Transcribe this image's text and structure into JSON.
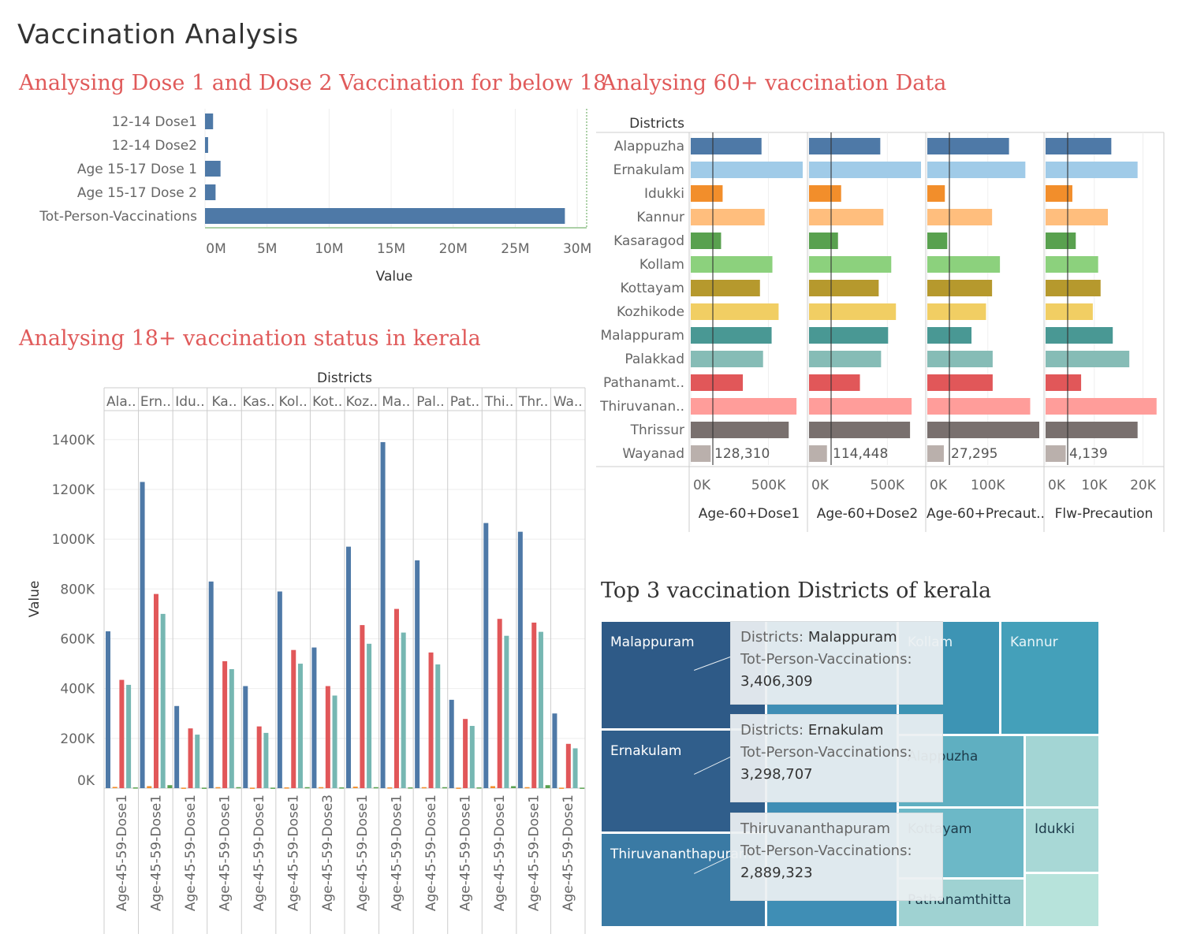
{
  "dashboard": {
    "title": "Vaccination Analysis"
  },
  "below18": {
    "title": "Analysing Dose 1 and Dose 2 Vaccination for below 18",
    "chart_data": {
      "type": "bar",
      "orientation": "horizontal",
      "categories": [
        "12-14 Dose1",
        "12-14 Dose2",
        "Age 15-17 Dose 1",
        "Age 15-17 Dose  2",
        "Tot-Person-Vaccinations"
      ],
      "values": [
        650000,
        250000,
        1250000,
        850000,
        29000000
      ],
      "xlabel": "Value",
      "xlim": [
        0,
        30500000
      ],
      "xticks": [
        0,
        5000000,
        10000000,
        15000000,
        20000000,
        25000000,
        30000000
      ],
      "xtick_labels": [
        "0M",
        "5M",
        "10M",
        "15M",
        "20M",
        "25M",
        "30M"
      ],
      "color": "#4e79a7"
    }
  },
  "adult": {
    "title": "Analysing 18+ vaccination status in kerala",
    "chart_data": {
      "type": "bar",
      "header_label": "Districts",
      "ylabel": "Value",
      "ylim": [
        0,
        1450000
      ],
      "yticks": [
        0,
        200000,
        400000,
        600000,
        800000,
        1000000,
        1200000,
        1400000
      ],
      "ytick_labels": [
        "0K",
        "200K",
        "400K",
        "600K",
        "800K",
        "1000K",
        "1200K",
        "1400K"
      ],
      "districts": [
        "Ala..",
        "Ern..",
        "Idu..",
        "Ka..",
        "Kas..",
        "Kol..",
        "Kot..",
        "Koz..",
        "Ma..",
        "Pal..",
        "Pat..",
        "Thi..",
        "Thr..",
        "Wa.."
      ],
      "bottom_labels": [
        "Age-45-59-Dose1",
        "Age-45-59-Dose1",
        "Age-45-59-Dose1",
        "Age-45-59-Dose1",
        "Age-45-59-Dose1",
        "Age-45-59-Dose1",
        "Age-45-59-Dose3",
        "Age-45-59-Dose1",
        "Age-45-59-Dose1",
        "Age-45-59-Dose1",
        "Age-45-59-Dose1",
        "Age-45-59-Dose1",
        "Age-45-59-Dose1",
        "Age-45-59-Dose1"
      ],
      "series_colors": [
        "#4e79a7",
        "#f28e2b",
        "#e15759",
        "#76b7b2",
        "#59a14f"
      ],
      "values": [
        [
          630000,
          5000,
          435000,
          415000,
          3000
        ],
        [
          1230000,
          8000,
          780000,
          700000,
          12000
        ],
        [
          330000,
          2000,
          240000,
          215000,
          2000
        ],
        [
          830000,
          4000,
          510000,
          478000,
          4000
        ],
        [
          410000,
          2000,
          248000,
          222000,
          2000
        ],
        [
          790000,
          3000,
          555000,
          500000,
          4000
        ],
        [
          565000,
          4000,
          410000,
          372000,
          3000
        ],
        [
          970000,
          6000,
          655000,
          580000,
          4000
        ],
        [
          1390000,
          3000,
          720000,
          625000,
          3000
        ],
        [
          915000,
          4000,
          545000,
          497000,
          4000
        ],
        [
          355000,
          2000,
          278000,
          250000,
          3000
        ],
        [
          1065000,
          8000,
          680000,
          612000,
          8000
        ],
        [
          1030000,
          4000,
          665000,
          628000,
          12000
        ],
        [
          300000,
          2000,
          178000,
          160000,
          2000
        ]
      ]
    }
  },
  "senior": {
    "title": "Analysing 60+ vaccination Data",
    "chart_data": {
      "type": "bar",
      "orientation": "horizontal",
      "row_header": "Districts",
      "districts": [
        "Alappuzha",
        "Ernakulam",
        "Idukki",
        "Kannur",
        "Kasaragod",
        "Kollam",
        "Kottayam",
        "Kozhikode",
        "Malappuram",
        "Palakkad",
        "Pathanamt..",
        "Thiruvanan..",
        "Thrissur",
        "Wayanad"
      ],
      "colors": [
        "#4e79a7",
        "#a0cbe8",
        "#f28e2b",
        "#ffbe7d",
        "#59a14f",
        "#8cd17d",
        "#b6992d",
        "#f1ce63",
        "#499894",
        "#86bcb6",
        "#e15759",
        "#ff9d9a",
        "#79706e",
        "#bab0ac"
      ],
      "panels": [
        {
          "label": "Age-60+Dose1",
          "xticks": [
            0,
            500000
          ],
          "xtick_labels": [
            "0K",
            "500K"
          ],
          "xmax": 720000,
          "values": [
            455000,
            720000,
            205000,
            475000,
            195000,
            525000,
            445000,
            565000,
            520000,
            465000,
            335000,
            680000,
            630000,
            128310
          ],
          "label_text": "128,310"
        },
        {
          "label": "Age-60+Dose2",
          "xticks": [
            0,
            500000
          ],
          "xtick_labels": [
            "0K",
            "500K"
          ],
          "xmax": 715000,
          "values": [
            455000,
            715000,
            205000,
            475000,
            185000,
            525000,
            445000,
            555000,
            505000,
            460000,
            325000,
            655000,
            645000,
            114448
          ],
          "label_text": "114,448"
        },
        {
          "label": "Age-60+Precaut..",
          "xticks": [
            0,
            100000
          ],
          "xtick_labels": [
            "0K",
            "100K"
          ],
          "xmax": 185000,
          "values": [
            135000,
            162000,
            29000,
            107000,
            33000,
            120000,
            107000,
            97000,
            73000,
            108000,
            108000,
            170000,
            185000,
            27295
          ],
          "label_text": "27,295"
        },
        {
          "label": "Flw-Precaution",
          "xticks": [
            0,
            10000,
            20000
          ],
          "xtick_labels": [
            "0K",
            "10K",
            "20K"
          ],
          "xmax": 23000,
          "values": [
            13500,
            18900,
            5500,
            12800,
            6200,
            10800,
            11300,
            9700,
            13800,
            17200,
            7300,
            22800,
            18900,
            4139
          ],
          "label_text": "4,139"
        }
      ]
    }
  },
  "top3": {
    "title": "Top 3 vaccination Districts of kerala",
    "chart_data": {
      "type": "treemap",
      "tiles": [
        {
          "label": "Malappuram",
          "color": "#2e5a87"
        },
        {
          "label": "Ernakulam",
          "color": "#305e8b"
        },
        {
          "label": "Thiruvananthapuram",
          "color": "#3a7aa4"
        },
        {
          "label": "",
          "color": "#3f8eb5"
        },
        {
          "label": "Kollam",
          "color": "#3d94b4"
        },
        {
          "label": "Kannur",
          "color": "#44a0ba"
        },
        {
          "label": "Alappuzha",
          "color": "#5fafc1"
        },
        {
          "label": "Kottayam",
          "color": "#6cb8c7"
        },
        {
          "label": "Pathanamthitta",
          "color": "#9fd2d2"
        },
        {
          "label": "Idukki",
          "color": "#a8d8d6"
        },
        {
          "label": "",
          "color": "#a3d5d4"
        },
        {
          "label": "",
          "color": "#b7e3db"
        }
      ],
      "tooltips": [
        {
          "field1": "Districts:",
          "value1": "Malappuram",
          "field2": "Tot-Person-Vaccinations:",
          "value2": "3,406,309"
        },
        {
          "field1": "Districts:",
          "value1": "Ernakulam",
          "field2": "Tot-Person-Vaccinations:",
          "value2": "3,298,707"
        },
        {
          "field1": "",
          "value1": "Thiruvananthapuram",
          "field2": "Tot-Person-Vaccinations:",
          "value2": "2,889,323"
        }
      ]
    }
  }
}
